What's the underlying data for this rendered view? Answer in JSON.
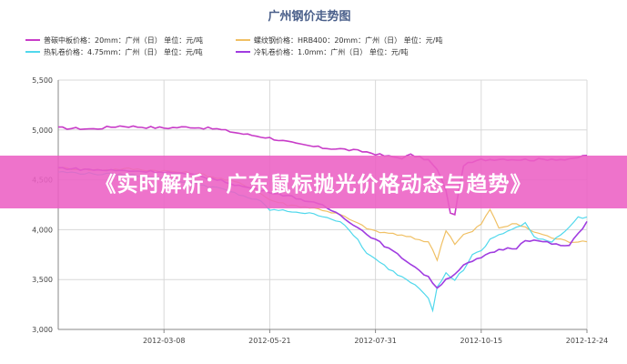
{
  "banner": {
    "text": "《实时解析：广东鼠标抛光价格动态与趋势》"
  },
  "chart_data": {
    "type": "line",
    "title": "广州钢价走势图",
    "xlabel": "",
    "ylabel": "",
    "ylim": [
      3000,
      5500
    ],
    "y_ticks": [
      "3,000",
      "3,500",
      "4,000",
      "4,500",
      "5,000",
      "5,500"
    ],
    "y_tick_values": [
      3000,
      3500,
      4000,
      4500,
      5000,
      5500
    ],
    "x_ticks": [
      "2012-03-08",
      "2012-05-21",
      "2012-07-31",
      "2012-10-15",
      "2012-12-24"
    ],
    "x_tick_index": [
      24,
      48,
      72,
      96,
      120
    ],
    "x_count": 121,
    "grid": true,
    "legend_position": "top-left",
    "series": [
      {
        "name": "普碳中板价格：20mm：广州（日） 单位：元/吨",
        "color": "#c83cc8",
        "keyframes": [
          [
            0,
            5020
          ],
          [
            8,
            5010
          ],
          [
            14,
            5040
          ],
          [
            24,
            5020
          ],
          [
            30,
            5030
          ],
          [
            36,
            5010
          ],
          [
            42,
            4960
          ],
          [
            48,
            4920
          ],
          [
            54,
            4860
          ],
          [
            60,
            4820
          ],
          [
            64,
            4810
          ],
          [
            70,
            4780
          ],
          [
            74,
            4740
          ],
          [
            78,
            4720
          ],
          [
            80,
            4750
          ],
          [
            84,
            4700
          ],
          [
            86,
            4600
          ],
          [
            88,
            4400
          ],
          [
            89,
            4160
          ],
          [
            90,
            4160
          ],
          [
            92,
            4650
          ],
          [
            96,
            4700
          ],
          [
            100,
            4710
          ],
          [
            108,
            4700
          ],
          [
            112,
            4710
          ],
          [
            116,
            4700
          ],
          [
            120,
            4750
          ]
        ]
      },
      {
        "name": "螺纹钢价格：HRB400：20mm：广州（日） 单位：元/吨",
        "color": "#f0c064",
        "keyframes": [
          [
            0,
            4620
          ],
          [
            8,
            4600
          ],
          [
            16,
            4610
          ],
          [
            24,
            4590
          ],
          [
            32,
            4560
          ],
          [
            40,
            4480
          ],
          [
            44,
            4420
          ],
          [
            48,
            4300
          ],
          [
            52,
            4250
          ],
          [
            56,
            4230
          ],
          [
            60,
            4200
          ],
          [
            64,
            4150
          ],
          [
            68,
            4060
          ],
          [
            72,
            3980
          ],
          [
            76,
            3960
          ],
          [
            80,
            3920
          ],
          [
            84,
            3880
          ],
          [
            86,
            3700
          ],
          [
            88,
            4000
          ],
          [
            90,
            3860
          ],
          [
            92,
            3950
          ],
          [
            94,
            3980
          ],
          [
            96,
            4060
          ],
          [
            98,
            4200
          ],
          [
            100,
            4020
          ],
          [
            104,
            4060
          ],
          [
            108,
            3980
          ],
          [
            112,
            3920
          ],
          [
            116,
            3880
          ],
          [
            120,
            3890
          ]
        ]
      },
      {
        "name": "热轧卷价格：4.75mm：广州（日） 单位：元/吨",
        "color": "#50d8ec",
        "keyframes": [
          [
            0,
            4580
          ],
          [
            8,
            4560
          ],
          [
            16,
            4550
          ],
          [
            24,
            4520
          ],
          [
            30,
            4470
          ],
          [
            36,
            4420
          ],
          [
            42,
            4340
          ],
          [
            46,
            4280
          ],
          [
            48,
            4200
          ],
          [
            54,
            4180
          ],
          [
            60,
            4140
          ],
          [
            64,
            4080
          ],
          [
            68,
            3900
          ],
          [
            70,
            3760
          ],
          [
            72,
            3700
          ],
          [
            76,
            3580
          ],
          [
            80,
            3480
          ],
          [
            82,
            3420
          ],
          [
            84,
            3320
          ],
          [
            85,
            3200
          ],
          [
            86,
            3420
          ],
          [
            88,
            3560
          ],
          [
            90,
            3500
          ],
          [
            92,
            3600
          ],
          [
            94,
            3750
          ],
          [
            96,
            3780
          ],
          [
            98,
            3900
          ],
          [
            100,
            3950
          ],
          [
            104,
            4020
          ],
          [
            106,
            4060
          ],
          [
            108,
            3930
          ],
          [
            112,
            3880
          ],
          [
            116,
            4030
          ],
          [
            118,
            4120
          ],
          [
            120,
            4120
          ]
        ]
      },
      {
        "name": "冷轧卷价格：1.0mm：广州（日） 单位：元/吨",
        "color": "#a03ce0",
        "keyframes": [
          [
            0,
            4620
          ],
          [
            8,
            4600
          ],
          [
            16,
            4590
          ],
          [
            24,
            4580
          ],
          [
            32,
            4540
          ],
          [
            38,
            4480
          ],
          [
            42,
            4430
          ],
          [
            48,
            4380
          ],
          [
            54,
            4320
          ],
          [
            60,
            4240
          ],
          [
            64,
            4150
          ],
          [
            68,
            4020
          ],
          [
            72,
            3900
          ],
          [
            76,
            3780
          ],
          [
            80,
            3660
          ],
          [
            84,
            3520
          ],
          [
            86,
            3420
          ],
          [
            88,
            3500
          ],
          [
            90,
            3560
          ],
          [
            92,
            3640
          ],
          [
            96,
            3720
          ],
          [
            100,
            3800
          ],
          [
            104,
            3820
          ],
          [
            106,
            3900
          ],
          [
            110,
            3880
          ],
          [
            114,
            3840
          ],
          [
            116,
            3840
          ],
          [
            118,
            3960
          ],
          [
            120,
            4080
          ]
        ]
      }
    ]
  }
}
